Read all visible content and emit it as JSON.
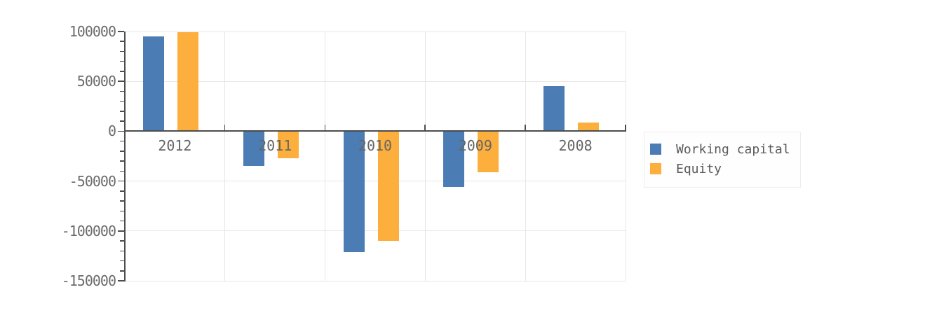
{
  "chart_data": {
    "type": "bar",
    "title": "",
    "xlabel": "",
    "ylabel": "",
    "categories": [
      "2012",
      "2011",
      "2010",
      "2009",
      "2008"
    ],
    "series": [
      {
        "name": "Working capital",
        "color": "#4b7db4",
        "values": [
          95000,
          -35000,
          -121000,
          -56000,
          45000
        ]
      },
      {
        "name": "Equity",
        "color": "#fcaf3c",
        "values": [
          99000,
          -27000,
          -110000,
          -41000,
          9000
        ]
      }
    ],
    "ylim": [
      -150000,
      100000
    ],
    "y_major_ticks": [
      100000,
      50000,
      0,
      -50000,
      -100000,
      -150000
    ],
    "y_tick_labels": [
      "100000",
      "50000",
      "0",
      "-50000",
      "-100000",
      "-150000"
    ],
    "y_minor_step": 10000,
    "grid": true,
    "legend_position": "right"
  },
  "colors": {
    "axis": "#4d4d4d",
    "grid": "#e6e6e6",
    "tick_text": "#6b6b6b",
    "legend_text": "#5a5a5a",
    "background": "#ffffff"
  },
  "legend": {
    "items": [
      {
        "label": "Working capital"
      },
      {
        "label": "Equity"
      }
    ]
  }
}
